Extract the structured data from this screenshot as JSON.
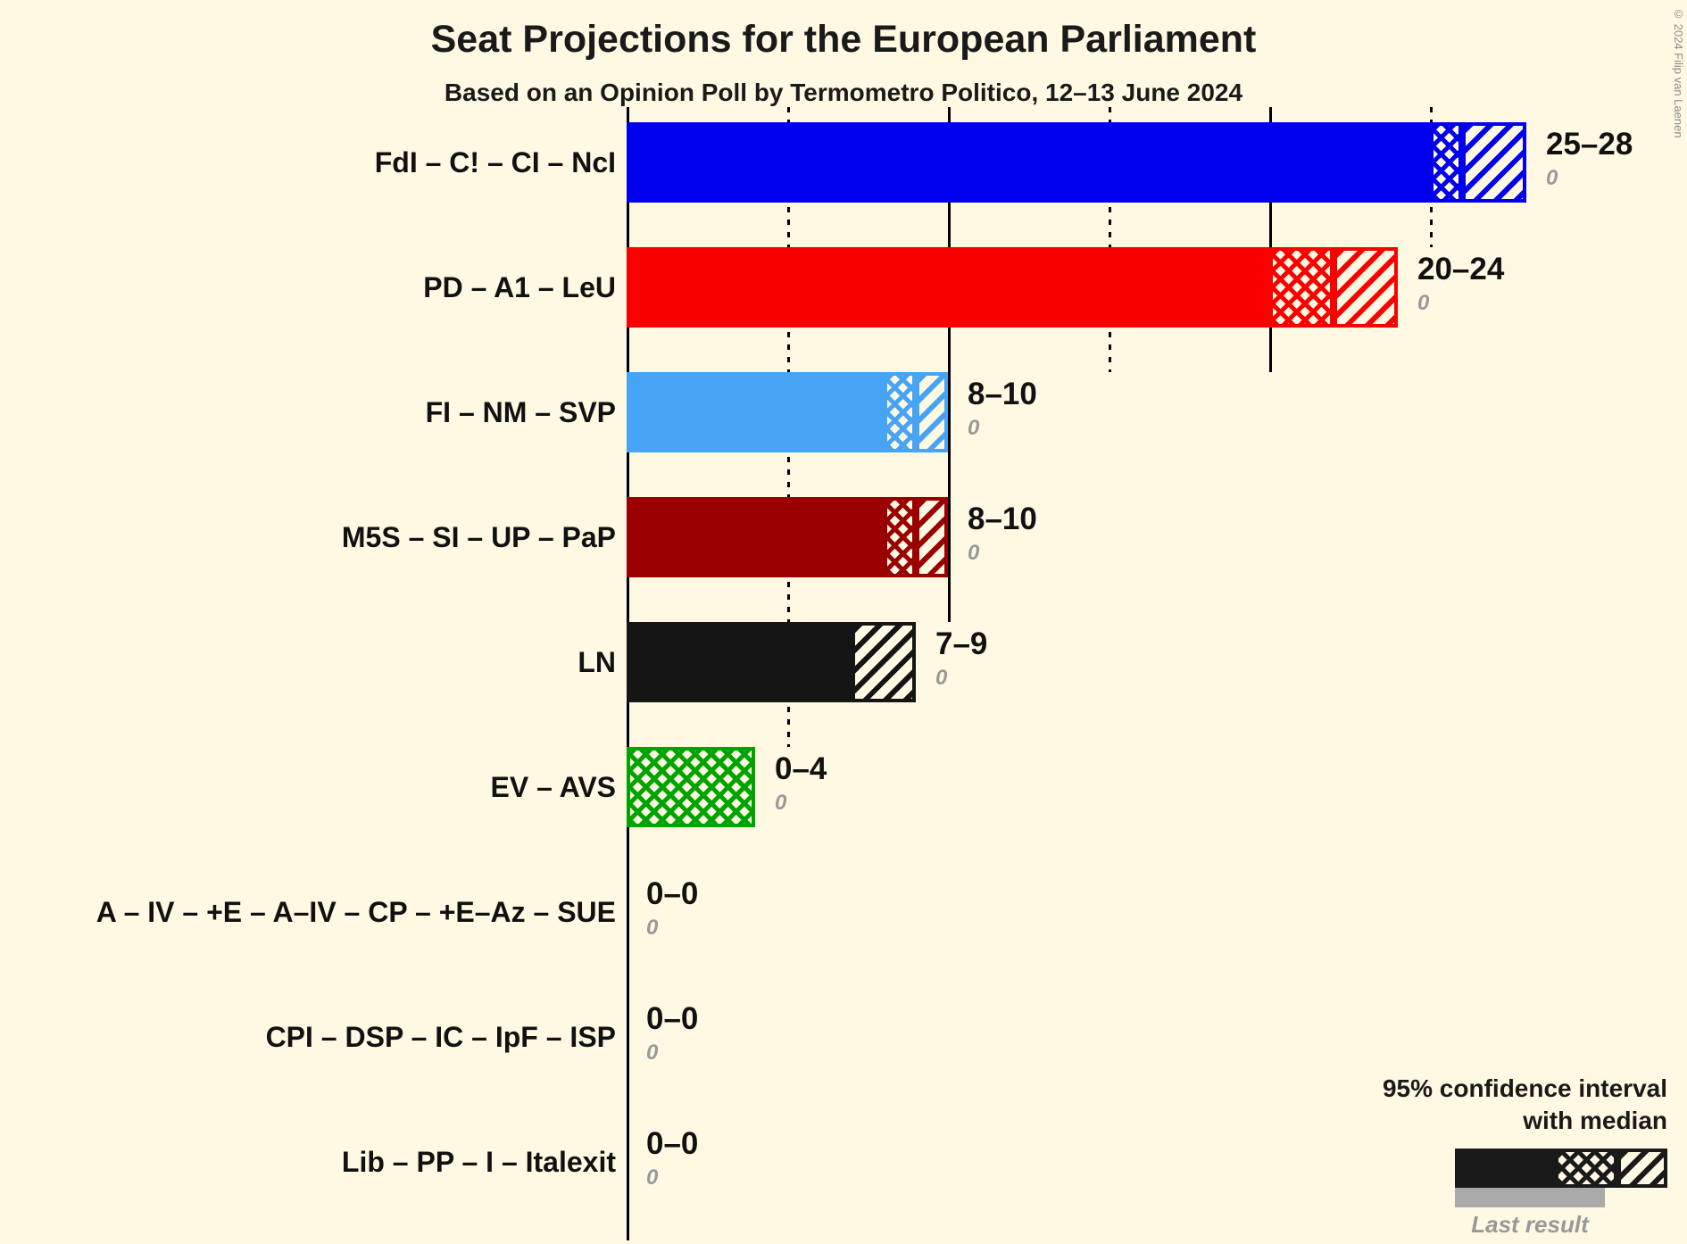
{
  "copyright": "© 2024 Filip van Laenen",
  "colors": {
    "background": "#FFF9E3",
    "axis": "#000000",
    "text": "#111111",
    "muted": "#999999",
    "last_result_bar": "#AAAAAA"
  },
  "legend": {
    "ci_label_line1": "95% confidence interval",
    "ci_label_line2": "with median",
    "last_result_label": "Last result",
    "sample_color": "#1A1A1A"
  },
  "chart_data": {
    "type": "bar",
    "orientation": "horizontal",
    "title": "Seat Projections for the European Parliament",
    "subtitle": "Based on an Opinion Poll by Termometro Politico, 12–13 June 2024",
    "unit": "seats",
    "axis": {
      "min": 0,
      "max": 28,
      "tick_interval": 5,
      "ticks": [
        {
          "value": 5,
          "style": "dotted",
          "rows": 5
        },
        {
          "value": 10,
          "style": "solid",
          "rows": 4
        },
        {
          "value": 15,
          "style": "dotted",
          "rows": 2
        },
        {
          "value": 20,
          "style": "solid",
          "rows": 2
        },
        {
          "value": 25,
          "style": "dotted",
          "rows": 1
        }
      ]
    },
    "parties": [
      {
        "label": "FdI – C! – CI – NcI",
        "color": "#0000EE",
        "ci_low": 25,
        "median": 26,
        "ci_high": 28,
        "range_label": "25–28",
        "last_result": 0,
        "last_result_label": "0"
      },
      {
        "label": "PD – A1 – LeU",
        "color": "#FA0000",
        "ci_low": 20,
        "median": 22,
        "ci_high": 24,
        "range_label": "20–24",
        "last_result": 0,
        "last_result_label": "0"
      },
      {
        "label": "FI – NM – SVP",
        "color": "#47A4F5",
        "ci_low": 8,
        "median": 9,
        "ci_high": 10,
        "range_label": "8–10",
        "last_result": 0,
        "last_result_label": "0"
      },
      {
        "label": "M5S – SI – UP – PaP",
        "color": "#9B0000",
        "ci_low": 8,
        "median": 9,
        "ci_high": 10,
        "range_label": "8–10",
        "last_result": 0,
        "last_result_label": "0"
      },
      {
        "label": "LN",
        "color": "#151515",
        "ci_low": 7,
        "median": 7,
        "ci_high": 9,
        "range_label": "7–9",
        "last_result": 0,
        "last_result_label": "0"
      },
      {
        "label": "EV – AVS",
        "color": "#00A400",
        "ci_low": 0,
        "median": 4,
        "ci_high": 4,
        "range_label": "0–4",
        "last_result": 0,
        "last_result_label": "0"
      },
      {
        "label": "A – IV – +E – A–IV – CP – +E–Az – SUE",
        "color": "#888888",
        "ci_low": 0,
        "median": 0,
        "ci_high": 0,
        "range_label": "0–0",
        "last_result": 0,
        "last_result_label": "0"
      },
      {
        "label": "CPI – DSP – IC – IpF – ISP",
        "color": "#888888",
        "ci_low": 0,
        "median": 0,
        "ci_high": 0,
        "range_label": "0–0",
        "last_result": 0,
        "last_result_label": "0"
      },
      {
        "label": "Lib – PP – I – Italexit",
        "color": "#888888",
        "ci_low": 0,
        "median": 0,
        "ci_high": 0,
        "range_label": "0–0",
        "last_result": 0,
        "last_result_label": "0"
      }
    ]
  }
}
